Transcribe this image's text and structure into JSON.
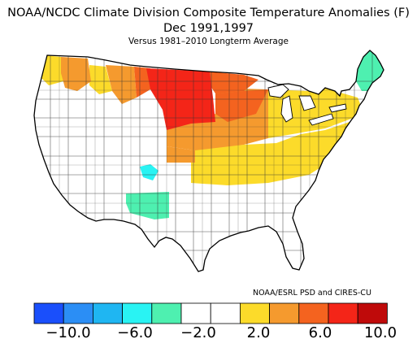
{
  "title_line1": "NOAA/NCDC Climate Division Composite Temperature Anomalies (F)",
  "title_line2": "Dec  1991,1997",
  "title_line3": "Versus 1981–2010 Longterm Average",
  "credit": "NOAA/ESRL PSD and CIRES-CU",
  "legend": {
    "colors": [
      "#1a4ffb",
      "#2b8ef5",
      "#1fb6f2",
      "#29f3f3",
      "#4ef0b0",
      "#ffffff",
      "#ffffff",
      "#fcdb2a",
      "#f59a2e",
      "#f4631f",
      "#f42518",
      "#bf0a0a"
    ],
    "tick_labels": [
      "−10.0",
      "−6.0",
      "−2.0",
      "2.0",
      "6.0",
      "10.0"
    ]
  },
  "anomaly_colors": {
    "strong_positive": "#f42518",
    "positive_high": "#f4631f",
    "positive_mid": "#f59a2e",
    "positive_low": "#fcdb2a",
    "negative_low": "#4ef0b0",
    "negative_mid": "#29f3f3",
    "neutral": "#ffffff"
  }
}
